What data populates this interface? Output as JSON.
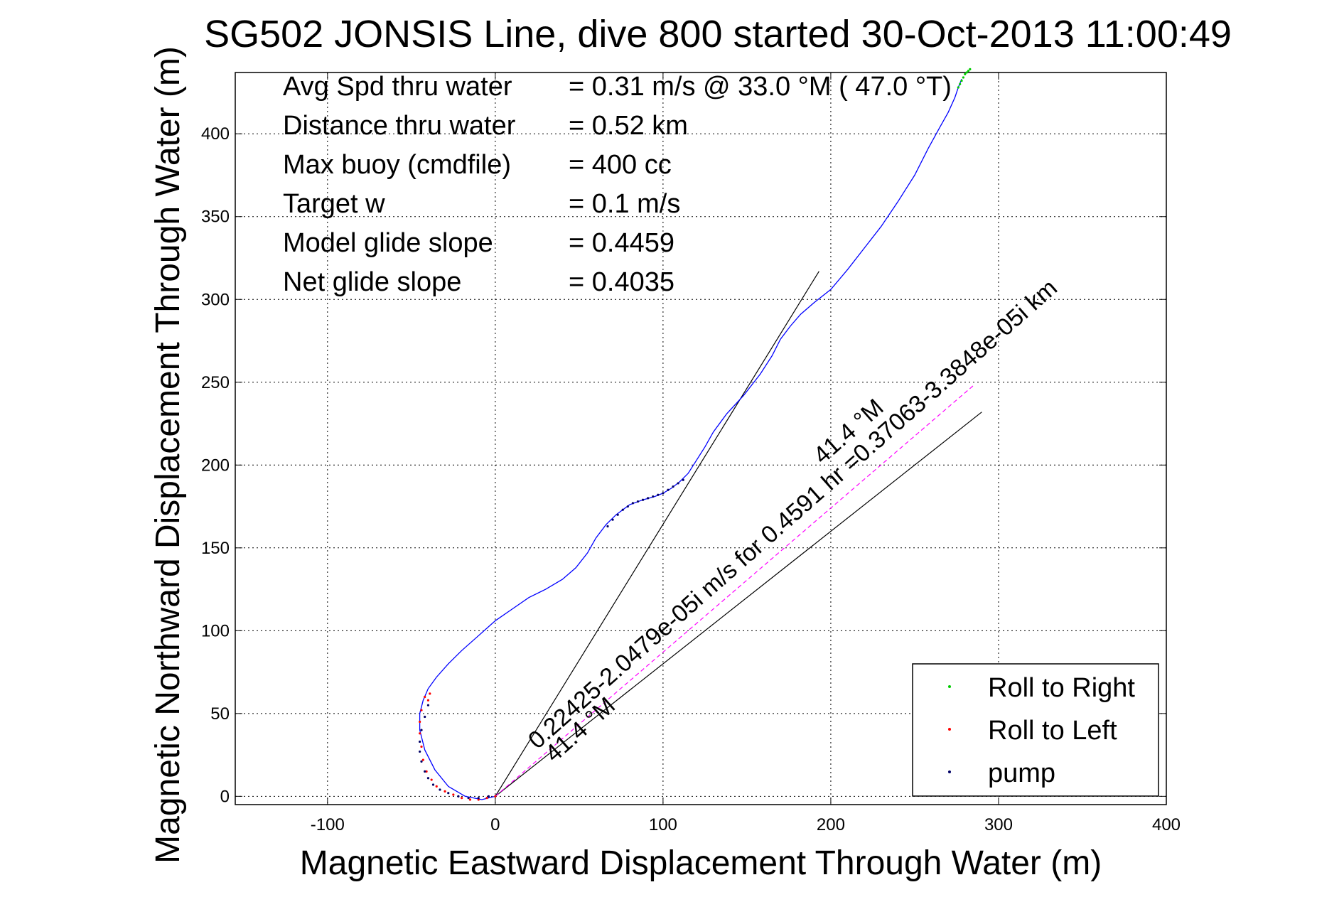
{
  "chart_data": {
    "type": "line",
    "title": "SG502 JONSIS Line, dive 800 started 30-Oct-2013 11:00:49",
    "xlabel": "Magnetic Eastward Displacement Through Water (m)",
    "ylabel": "Magnetic Northward Displacement Through Water (m)",
    "xlim": [
      -155,
      400
    ],
    "ylim": [
      -5,
      437
    ],
    "xticks": [
      -100,
      0,
      100,
      200,
      300,
      400
    ],
    "yticks": [
      0,
      50,
      100,
      150,
      200,
      250,
      300,
      350,
      400
    ],
    "grid": true,
    "info": [
      {
        "label": "Avg Spd thru water",
        "value": "=  0.31 m/s @  33.0 °M ( 47.0 °T)"
      },
      {
        "label": "Distance thru water",
        "value": "=  0.52 km"
      },
      {
        "label": "Max buoy (cmdfile)",
        "value": "= 400 cc"
      },
      {
        "label": "Target w",
        "value": "= 0.1 m/s"
      },
      {
        "label": "Model glide slope",
        "value": "= 0.4459"
      },
      {
        "label": "Net glide slope",
        "value": "= 0.4035"
      }
    ],
    "track": {
      "name": "glider track",
      "color": "#0000ff",
      "x": [
        0,
        -8,
        -18,
        -28,
        -36,
        -42,
        -45,
        -45,
        -43,
        -40,
        -35,
        -28,
        -20,
        -10,
        0,
        10,
        20,
        30,
        40,
        48,
        55,
        60,
        66,
        72,
        80,
        88,
        95,
        100,
        105,
        110,
        115,
        120,
        125,
        130,
        138,
        148,
        158,
        165,
        170,
        176,
        182,
        190,
        200,
        210,
        220,
        230,
        240,
        250,
        258,
        265,
        270,
        274,
        276,
        278
      ],
      "y": [
        0,
        -2,
        0,
        6,
        16,
        28,
        40,
        50,
        58,
        65,
        72,
        80,
        88,
        97,
        106,
        113,
        120,
        125,
        131,
        138,
        147,
        156,
        164,
        170,
        176,
        179,
        181,
        183,
        186,
        190,
        195,
        203,
        211,
        220,
        231,
        242,
        255,
        266,
        276,
        284,
        291,
        298,
        306,
        318,
        331,
        344,
        359,
        375,
        391,
        404,
        413,
        422,
        428,
        433
      ]
    },
    "points": [
      {
        "name": "Roll to Right",
        "color": "#00cc00",
        "x": [
          276,
          277,
          278,
          279,
          280,
          281,
          282,
          283
        ],
        "y": [
          428,
          430,
          432,
          434,
          436,
          437,
          438,
          439
        ]
      },
      {
        "name": "Roll to Left",
        "color": "#ff0000",
        "x": [
          -42,
          -44,
          -45,
          -45,
          -44,
          -43,
          -41,
          -38,
          -35,
          -30,
          -25,
          -20,
          -15,
          -10,
          -5,
          0,
          -39,
          -40
        ],
        "y": [
          60,
          52,
          45,
          38,
          30,
          22,
          15,
          10,
          6,
          3,
          1,
          -1,
          -2,
          -2,
          -1,
          0,
          62,
          58
        ]
      },
      {
        "name": "pump",
        "color": "#000066",
        "x": [
          -40,
          -42,
          -44,
          -45,
          -45,
          -44,
          -42,
          -40,
          -37,
          -33,
          -28,
          -22,
          -16,
          -10,
          -4,
          67,
          70,
          73,
          76,
          79,
          82,
          85,
          88,
          91,
          94,
          97,
          100,
          103,
          106,
          109,
          112
        ],
        "y": [
          55,
          48,
          40,
          33,
          27,
          21,
          15,
          11,
          7,
          4,
          2,
          0,
          -1,
          -1,
          0,
          163,
          167,
          170,
          173,
          175,
          177,
          178,
          179,
          180,
          181,
          182,
          183,
          185,
          187,
          189,
          191
        ]
      }
    ],
    "reference_lines": [
      {
        "x": [
          0,
          193
        ],
        "y": [
          0,
          317
        ]
      },
      {
        "x": [
          0,
          290
        ],
        "y": [
          0,
          232
        ]
      },
      {
        "x": [
          0,
          285
        ],
        "y": [
          0,
          248
        ],
        "color": "#ff00ff",
        "dashed": true
      }
    ],
    "annotations": [
      {
        "text": "0.22425-2.0479e-05i m/s for 0.4591 hr =0.37063-3.3848e-05i km",
        "x": 25,
        "y": 28,
        "angle": -41.4
      },
      {
        "text": "41.4 °M",
        "x": 195,
        "y": 200,
        "angle": -41.4
      },
      {
        "text": "41.4 °M",
        "x": 35,
        "y": 20,
        "angle": -41.4
      }
    ],
    "legend": {
      "position": "bottom-right",
      "entries": [
        "Roll to Right",
        "Roll to Left",
        "pump"
      ]
    }
  }
}
